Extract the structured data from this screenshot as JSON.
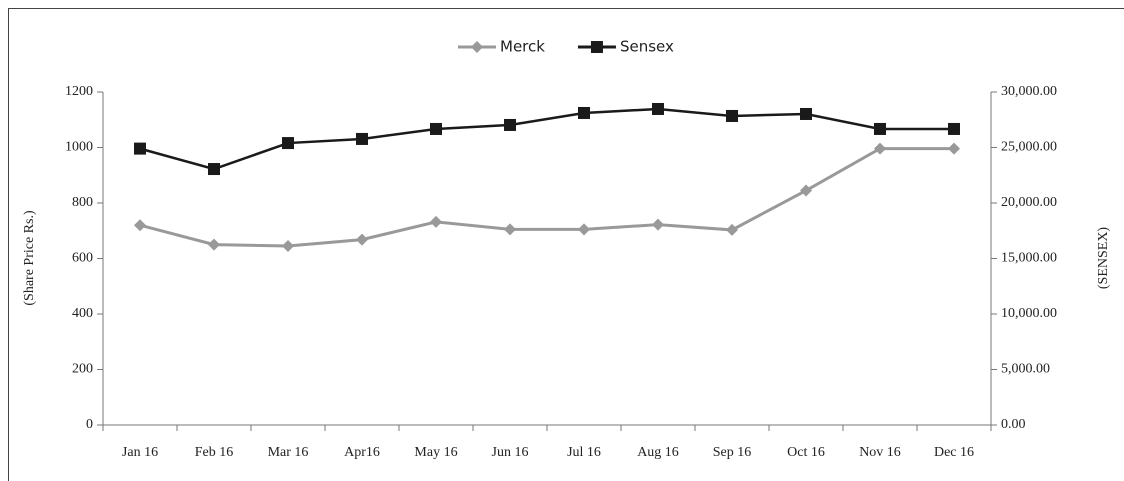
{
  "chart_data": {
    "type": "line",
    "categories": [
      "Jan 16",
      "Feb 16",
      "Mar 16",
      "Apr16",
      "May 16",
      "Jun 16",
      "Jul 16",
      "Aug 16",
      "Sep 16",
      "Oct 16",
      "Nov 16",
      "Dec 16"
    ],
    "series": [
      {
        "name": "Merck",
        "color": "#999999",
        "marker": "diamond",
        "values": [
          720,
          650,
          645,
          668,
          732,
          705,
          705,
          722,
          703,
          845,
          996,
          996
        ]
      },
      {
        "name": "Sensex",
        "color": "#1a1a1a",
        "marker": "square",
        "axis": "y2",
        "values": [
          24900,
          23060,
          25400,
          25770,
          26670,
          27030,
          28110,
          28470,
          27840,
          28020,
          26670,
          26670
        ]
      }
    ],
    "ylabel": "(Share Price Rs.)",
    "y2label": "(SENSEX)",
    "ylim": [
      0,
      1200
    ],
    "yticks": [
      0,
      200,
      400,
      600,
      800,
      1000,
      1200
    ],
    "y2lim": [
      0,
      30000
    ],
    "y2ticks": [
      {
        "value": 0,
        "label": "0.00"
      },
      {
        "value": 5000,
        "label": "5,000.00"
      },
      {
        "value": 10000,
        "label": "10,000.00"
      },
      {
        "value": 15000,
        "label": "15,000.00"
      },
      {
        "value": 20000,
        "label": "20,000.00"
      },
      {
        "value": 25000,
        "label": "25,000.00"
      },
      {
        "value": 30000,
        "label": "30,000.00"
      }
    ],
    "legend": "top"
  }
}
